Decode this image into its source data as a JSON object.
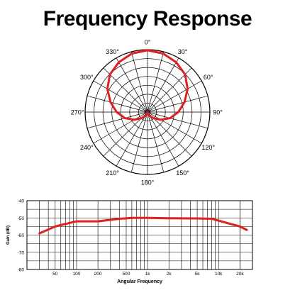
{
  "title": "Frequency Response",
  "chart_data": [
    {
      "type": "polar",
      "angle_labels": [
        "0°",
        "30°",
        "60°",
        "90°",
        "120°",
        "150°",
        "180°",
        "210°",
        "240°",
        "270°",
        "300°",
        "330°"
      ],
      "angles_deg": [
        0,
        30,
        60,
        90,
        120,
        150,
        180,
        210,
        240,
        270,
        300,
        330
      ],
      "rings": 7,
      "line_color": "#e02020",
      "pattern": "cardioid",
      "series": [
        {
          "angle": [
            0,
            15,
            30,
            45,
            60,
            75,
            90,
            105,
            120,
            135,
            150,
            165,
            180,
            195,
            210,
            225,
            240,
            255,
            270,
            285,
            300,
            315,
            330,
            345,
            360
          ],
          "r": [
            1.0,
            0.98,
            0.93,
            0.86,
            0.75,
            0.62,
            0.5,
            0.38,
            0.25,
            0.14,
            0.07,
            0.02,
            0.0,
            0.02,
            0.07,
            0.14,
            0.25,
            0.38,
            0.5,
            0.62,
            0.75,
            0.86,
            0.93,
            0.98,
            1.0
          ]
        }
      ]
    },
    {
      "type": "line",
      "xlabel": "Angular Frequency",
      "ylabel": "Gain (dB)",
      "xscale": "log",
      "xlim": [
        20,
        30000
      ],
      "ylim": [
        -80,
        -40
      ],
      "yticks": [
        -40,
        -50,
        -60,
        -70,
        -80
      ],
      "ytick_labels": [
        "-40",
        "-50",
        "-60",
        "-70",
        "-80"
      ],
      "xticks": [
        50,
        100,
        200,
        500,
        1000,
        2000,
        5000,
        10000,
        20000
      ],
      "xtick_labels": [
        "50",
        "100",
        "200",
        "500",
        "1k",
        "2k",
        "5k",
        "10k",
        "20k"
      ],
      "line_color": "#e02020",
      "series": [
        {
          "x": [
            30,
            50,
            70,
            100,
            200,
            400,
            600,
            1000,
            2000,
            5000,
            8000,
            12000,
            20000,
            25000
          ],
          "y": [
            -59,
            -55,
            -53.5,
            -52,
            -52,
            -50.5,
            -50,
            -50,
            -50.2,
            -50.3,
            -50.5,
            -52.5,
            -55,
            -57
          ]
        }
      ]
    }
  ]
}
